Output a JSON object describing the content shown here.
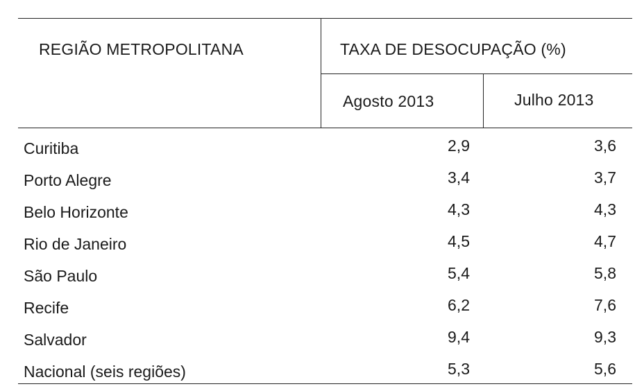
{
  "table": {
    "region_header": "REGIÃO METROPOLITANA",
    "rate_header": "TAXA DE DESOCUPAÇÃO (%)",
    "columns": [
      "Agosto 2013",
      "Julho 2013"
    ],
    "rows": [
      {
        "region": "Curitiba",
        "aug": "2,9",
        "jul": "3,6"
      },
      {
        "region": "Porto Alegre",
        "aug": "3,4",
        "jul": "3,7"
      },
      {
        "region": "Belo Horizonte",
        "aug": "4,3",
        "jul": "4,3"
      },
      {
        "region": "Rio de Janeiro",
        "aug": "4,5",
        "jul": "4,7"
      },
      {
        "region": "São Paulo",
        "aug": "5,4",
        "jul": "5,8"
      },
      {
        "region": "Recife",
        "aug": "6,2",
        "jul": "7,6"
      },
      {
        "region": "Salvador",
        "aug": "9,4",
        "jul": "9,3"
      },
      {
        "region": "Nacional (seis regiões)",
        "aug": "5,3",
        "jul": "5,6"
      }
    ]
  }
}
